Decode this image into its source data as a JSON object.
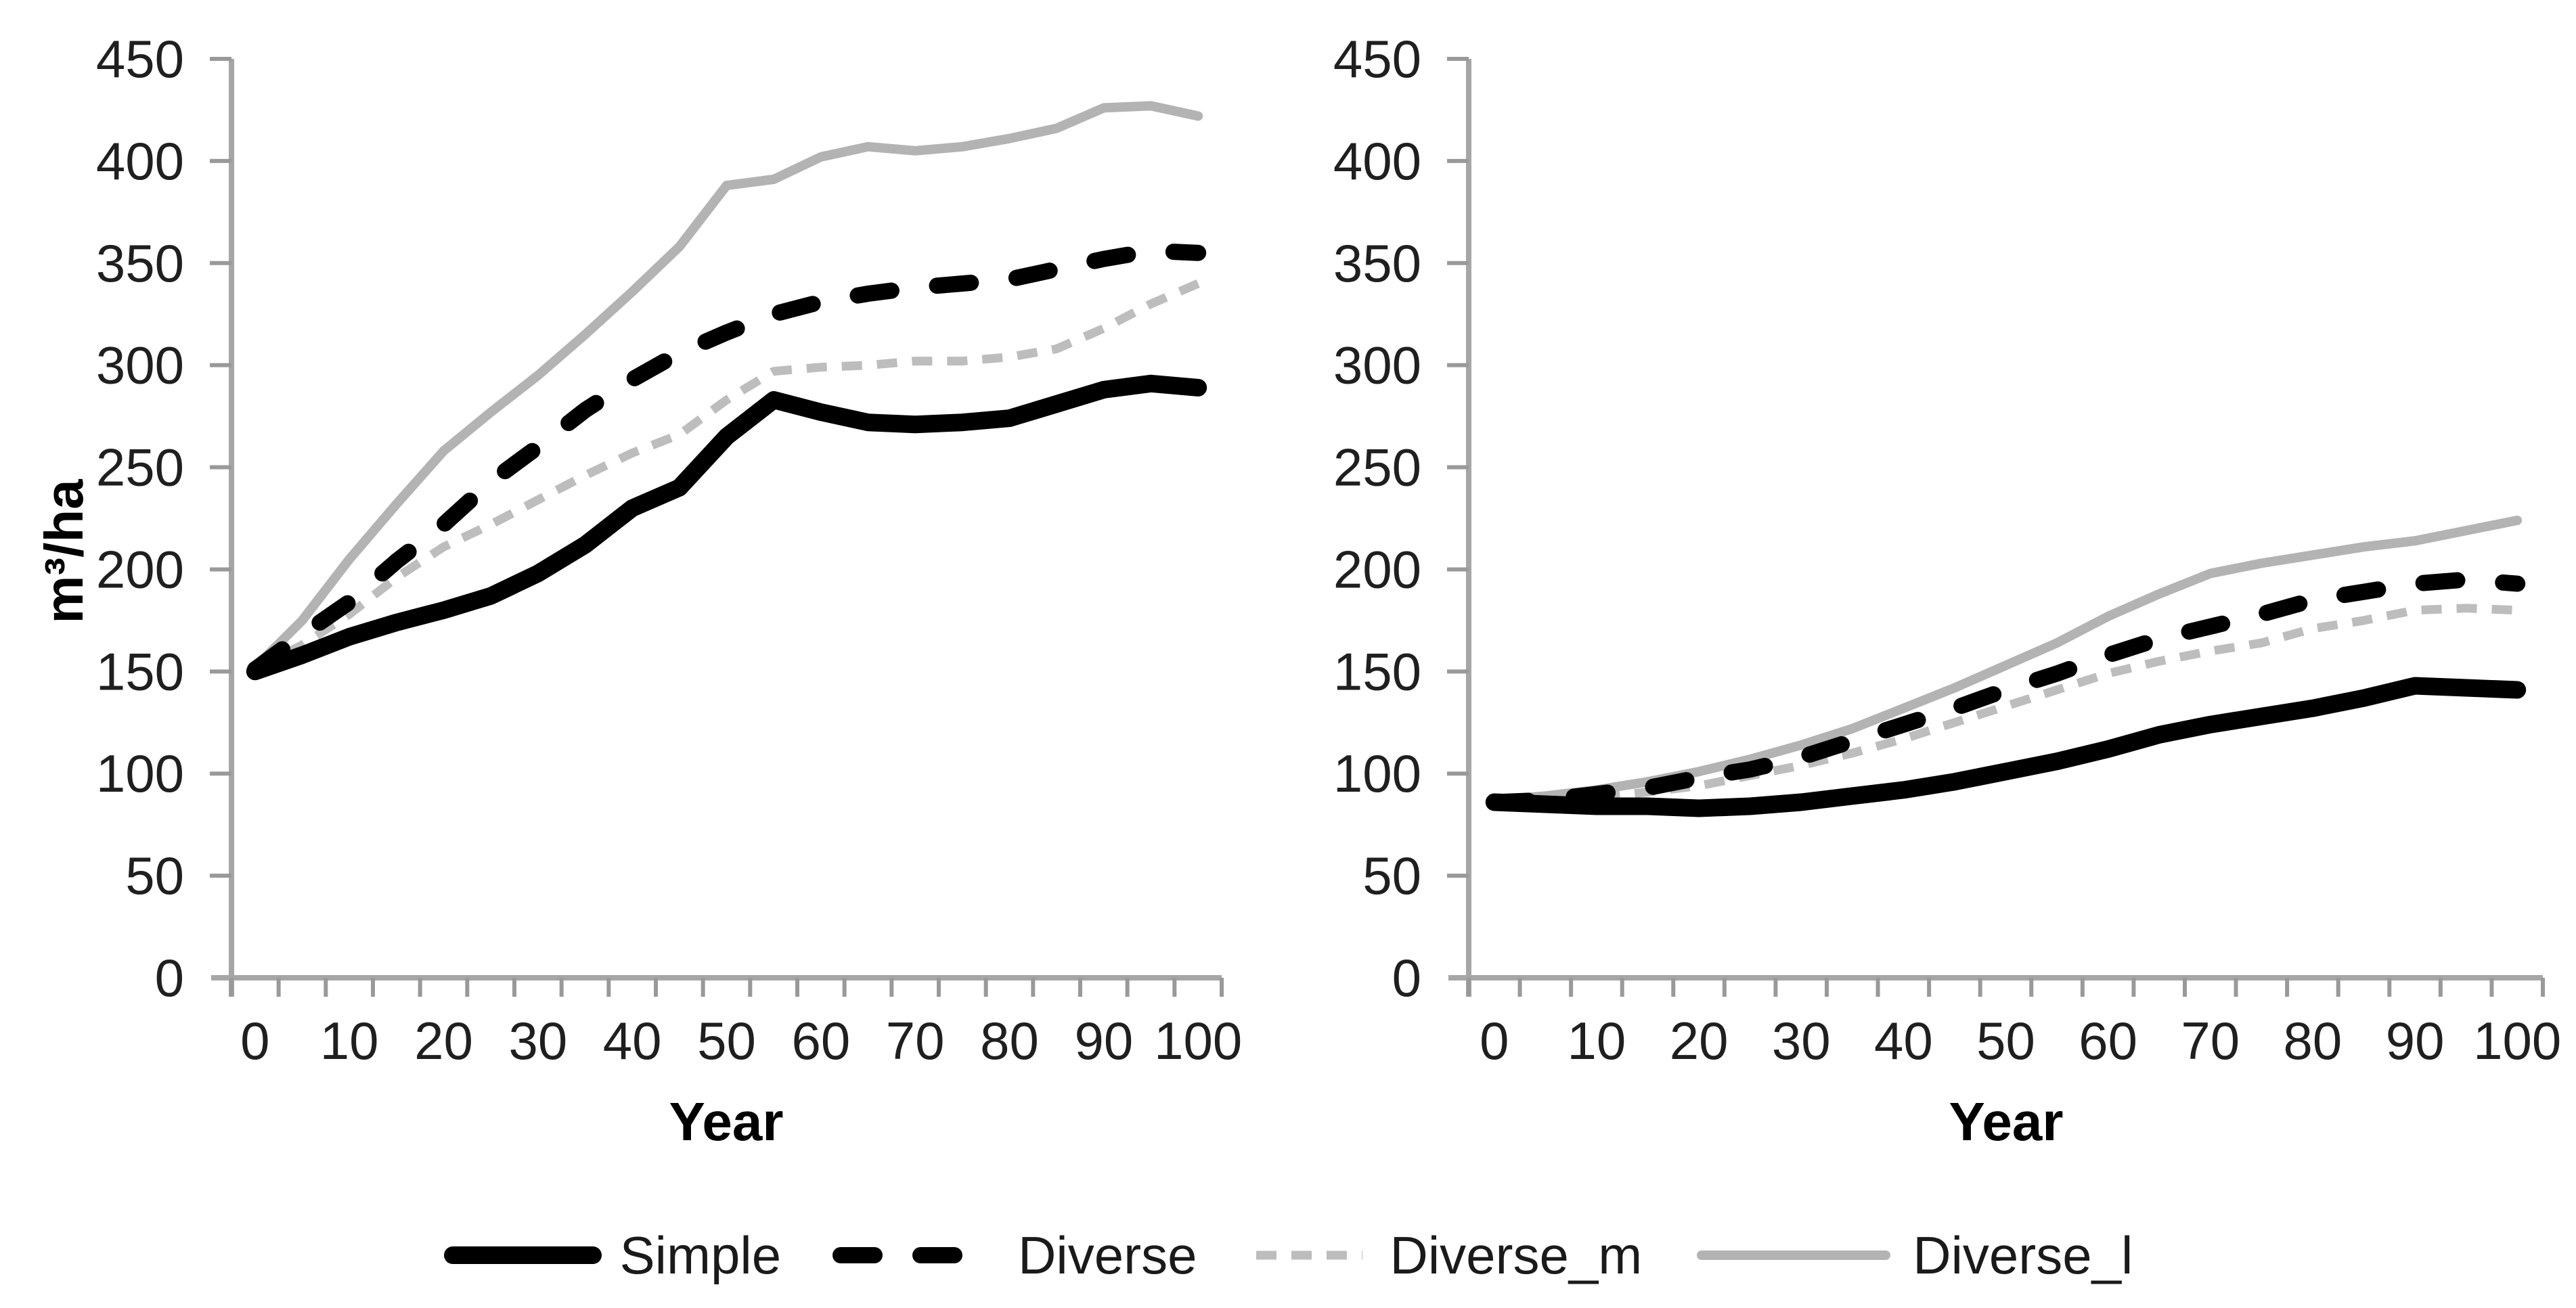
{
  "figure": {
    "y_axis_title": "m³/ha",
    "x_axis_title": "Year",
    "background_color": "#ffffff",
    "axis_color": "#a6a6a6",
    "tick_color": "#999999",
    "tick_label_color": "#1f1f1f",
    "legend_position": "bottom-center-shared",
    "legend": [
      {
        "label": "Simple",
        "color": "#000000",
        "line_width": 26,
        "dash": ""
      },
      {
        "label": "Diverse",
        "color": "#000000",
        "line_width": 24,
        "dash": "50 68"
      },
      {
        "label": "Diverse_m",
        "color": "#bdbdbd",
        "line_width": 13,
        "dash": "30 22"
      },
      {
        "label": "Diverse_l",
        "color": "#b3b3b3",
        "line_width": 14,
        "dash": ""
      }
    ]
  },
  "chart_data": [
    {
      "type": "line",
      "panel": "left",
      "title": "",
      "xlabel": "Year",
      "ylabel": "m³/ha",
      "ylim": [
        0,
        450
      ],
      "y_tick_step": 50,
      "y_tick_labels": [
        "0",
        "50",
        "100",
        "150",
        "200",
        "250",
        "300",
        "350",
        "400",
        "450"
      ],
      "x": [
        0,
        5,
        10,
        15,
        20,
        25,
        30,
        35,
        40,
        45,
        50,
        55,
        60,
        65,
        70,
        75,
        80,
        85,
        90,
        95,
        100
      ],
      "x_tick_labels": [
        "0",
        "10",
        "20",
        "30",
        "40",
        "50",
        "60",
        "70",
        "80",
        "90",
        "100"
      ],
      "grid": false,
      "series": [
        {
          "name": "Simple",
          "values": [
            150,
            158,
            167,
            174,
            180,
            187,
            198,
            212,
            230,
            240,
            265,
            283,
            277,
            272,
            271,
            272,
            274,
            281,
            288,
            291,
            289
          ]
        },
        {
          "name": "Diverse",
          "values": [
            151,
            168,
            184,
            204,
            222,
            243,
            260,
            278,
            293,
            306,
            316,
            325,
            331,
            335,
            338,
            340,
            342,
            347,
            352,
            356,
            355
          ]
        },
        {
          "name": "Diverse_m",
          "values": [
            151,
            163,
            178,
            196,
            211,
            222,
            234,
            246,
            257,
            266,
            283,
            297,
            299,
            300,
            302,
            302,
            304,
            308,
            318,
            330,
            340
          ]
        },
        {
          "name": "Diverse_l",
          "values": [
            152,
            175,
            205,
            232,
            258,
            277,
            295,
            315,
            336,
            358,
            388,
            391,
            402,
            407,
            405,
            407,
            411,
            416,
            426,
            427,
            422
          ]
        }
      ]
    },
    {
      "type": "line",
      "panel": "right",
      "title": "",
      "xlabel": "Year",
      "ylabel": "",
      "ylim": [
        0,
        450
      ],
      "y_tick_step": 50,
      "y_tick_labels": [
        "0",
        "50",
        "100",
        "150",
        "200",
        "250",
        "300",
        "350",
        "400",
        "450"
      ],
      "x": [
        0,
        5,
        10,
        15,
        20,
        25,
        30,
        35,
        40,
        45,
        50,
        55,
        60,
        65,
        70,
        75,
        80,
        85,
        90,
        95,
        100
      ],
      "x_tick_labels": [
        "0",
        "10",
        "20",
        "30",
        "40",
        "50",
        "60",
        "70",
        "80",
        "90",
        "100"
      ],
      "grid": false,
      "series": [
        {
          "name": "Simple",
          "values": [
            86,
            85,
            84,
            84,
            83,
            84,
            86,
            89,
            92,
            96,
            101,
            106,
            112,
            119,
            124,
            128,
            132,
            137,
            143,
            142,
            141
          ]
        },
        {
          "name": "Diverse",
          "values": [
            86,
            87,
            90,
            93,
            98,
            102,
            108,
            116,
            124,
            132,
            141,
            149,
            158,
            166,
            172,
            178,
            185,
            189,
            193,
            195,
            193
          ]
        },
        {
          "name": "Diverse_m",
          "values": [
            86,
            87,
            88,
            91,
            94,
            99,
            104,
            110,
            117,
            125,
            133,
            141,
            149,
            155,
            160,
            164,
            171,
            175,
            180,
            181,
            180
          ]
        },
        {
          "name": "Diverse_l",
          "values": [
            87,
            89,
            92,
            96,
            101,
            107,
            114,
            122,
            132,
            142,
            153,
            164,
            177,
            188,
            198,
            203,
            207,
            211,
            214,
            219,
            224
          ]
        }
      ]
    }
  ]
}
